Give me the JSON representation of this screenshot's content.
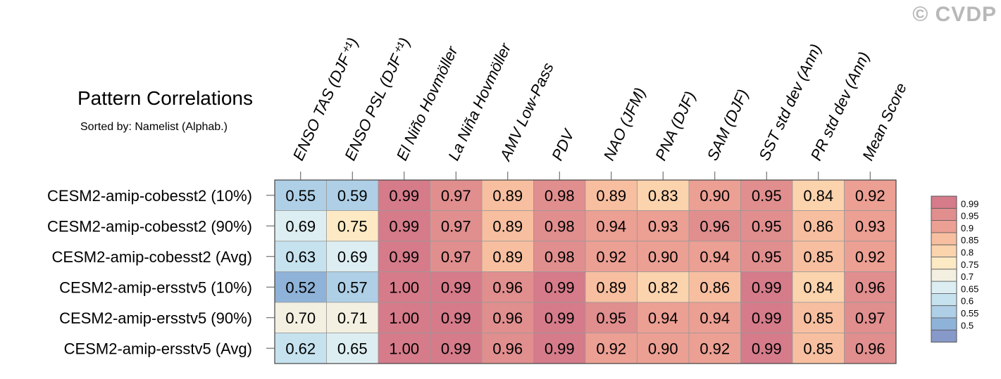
{
  "watermark": "© CVDP",
  "chart_data": {
    "type": "heatmap",
    "title": "Pattern Correlations",
    "subtitle": "Sorted by: Namelist (Alphab.)",
    "columns": [
      "ENSO TAS (DJF⁺¹)",
      "ENSO PSL (DJF⁺¹)",
      "El Niño Hovmöller",
      "La Niña Hovmöller",
      "AMV Low-Pass",
      "PDV",
      "NAO (JFM)",
      "PNA (DJF)",
      "SAM (DJF)",
      "SST std dev (Ann)",
      "PR std dev (Ann)",
      "Mean Score"
    ],
    "rows": [
      "CESM2-amip-cobesst2 (10%)",
      "CESM2-amip-cobesst2 (90%)",
      "CESM2-amip-cobesst2 (Avg)",
      "CESM2-amip-ersstv5 (10%)",
      "CESM2-amip-ersstv5 (90%)",
      "CESM2-amip-ersstv5 (Avg)"
    ],
    "values": [
      [
        "0.55",
        "0.59",
        "0.99",
        "0.97",
        "0.89",
        "0.98",
        "0.89",
        "0.83",
        "0.90",
        "0.95",
        "0.84",
        "0.92"
      ],
      [
        "0.69",
        "0.75",
        "0.99",
        "0.97",
        "0.89",
        "0.98",
        "0.94",
        "0.93",
        "0.96",
        "0.95",
        "0.86",
        "0.93"
      ],
      [
        "0.63",
        "0.69",
        "0.99",
        "0.97",
        "0.89",
        "0.98",
        "0.92",
        "0.90",
        "0.94",
        "0.95",
        "0.85",
        "0.92"
      ],
      [
        "0.52",
        "0.57",
        "1.00",
        "0.99",
        "0.96",
        "0.99",
        "0.89",
        "0.82",
        "0.86",
        "0.99",
        "0.84",
        "0.96"
      ],
      [
        "0.70",
        "0.71",
        "1.00",
        "0.99",
        "0.96",
        "0.99",
        "0.95",
        "0.94",
        "0.94",
        "0.99",
        "0.85",
        "0.97"
      ],
      [
        "0.62",
        "0.65",
        "1.00",
        "0.99",
        "0.96",
        "0.99",
        "0.92",
        "0.90",
        "0.92",
        "0.99",
        "0.85",
        "0.96"
      ]
    ],
    "colorbar": {
      "thresholds": [
        "0.99",
        "0.95",
        "0.9",
        "0.85",
        "0.8",
        "0.75",
        "0.7",
        "0.65",
        "0.6",
        "0.55",
        "0.5"
      ],
      "colors_top_to_bottom": [
        "#d57b8a",
        "#e18e8e",
        "#ec9f93",
        "#f7bfa0",
        "#fbd3ad",
        "#fdeac4",
        "#f3f0e2",
        "#ddeef2",
        "#c6e2ee",
        "#aecfe6",
        "#8fb2d8",
        "#8799c8"
      ]
    }
  }
}
